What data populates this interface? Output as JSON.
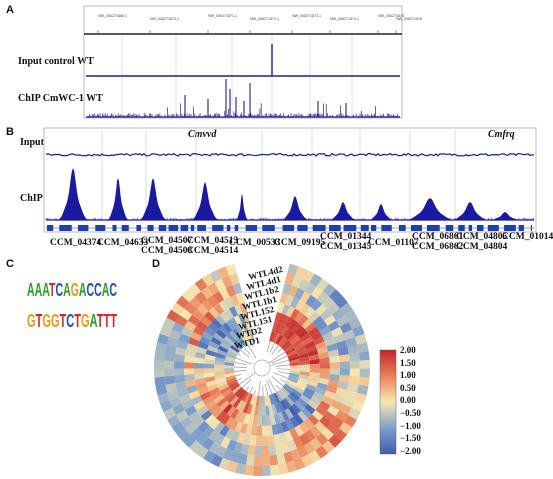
{
  "panels": {
    "a": "A",
    "b": "B",
    "c": "C",
    "d": "D"
  },
  "panel_a": {
    "track_labels": [
      "Input control WT",
      "ChIP CmWC-1 WT"
    ],
    "ruler_labels": [
      "NW_006271868.1",
      "NW_006271870.1",
      "NW_006271871.1",
      "NW_006271872.1",
      "NW_006271873.1",
      "NW_006271874.1",
      "NW_006271875",
      "NW_006271876"
    ],
    "colors": {
      "signal": "#1f1f8f",
      "ruler": "#444444"
    }
  },
  "panel_b": {
    "track_labels": [
      "Input",
      "ChIP"
    ],
    "gene_italics": [
      "Cmvvd",
      "Cmfrq"
    ],
    "genes": [
      {
        "line1": "CCM_04374",
        "line2": ""
      },
      {
        "line1": "CCM_04633",
        "line2": ""
      },
      {
        "line1": "CCM_04507",
        "line2": "CCM_04508"
      },
      {
        "line1": "CCM_04513",
        "line2": "CCM_04514"
      },
      {
        "line1": "CCM_00533",
        "line2": ""
      },
      {
        "line1": "CCM_09195",
        "line2": ""
      },
      {
        "line1": "CCM_01344",
        "line2": "CCM_01345"
      },
      {
        "line1": "CCM_01107",
        "line2": ""
      },
      {
        "line1": "CCM_06861",
        "line2": "CCM_06862"
      },
      {
        "line1": "CCM_04805",
        "line2": "CCM_04804"
      },
      {
        "line1": "CCM_01014",
        "line2": ""
      }
    ],
    "colors": {
      "signal": "#1a1aa0",
      "gene_bar": "#1f3fb0"
    }
  },
  "panel_c": {
    "motif_top": "AAATCAGACCAC",
    "motif_bottom": "GTGGTCTGATTT"
  },
  "panel_d": {
    "ring_labels": [
      "WTL4d2",
      "WTL4d1",
      "WTL1b2",
      "WTL1b1",
      "WTL152",
      "WTL151",
      "WTD2",
      "WTD1"
    ],
    "legend": {
      "ticks": [
        "2.00",
        "1.50",
        "1.00",
        "0.50",
        "0.00",
        "−0.50",
        "−1.00",
        "−1.50",
        "−2.00"
      ],
      "range": [
        -2.0,
        2.0
      ],
      "colors": [
        "#c0272d",
        "#e8805a",
        "#f8e7b0",
        "#7ea0cc",
        "#3f5ab0"
      ]
    }
  }
}
